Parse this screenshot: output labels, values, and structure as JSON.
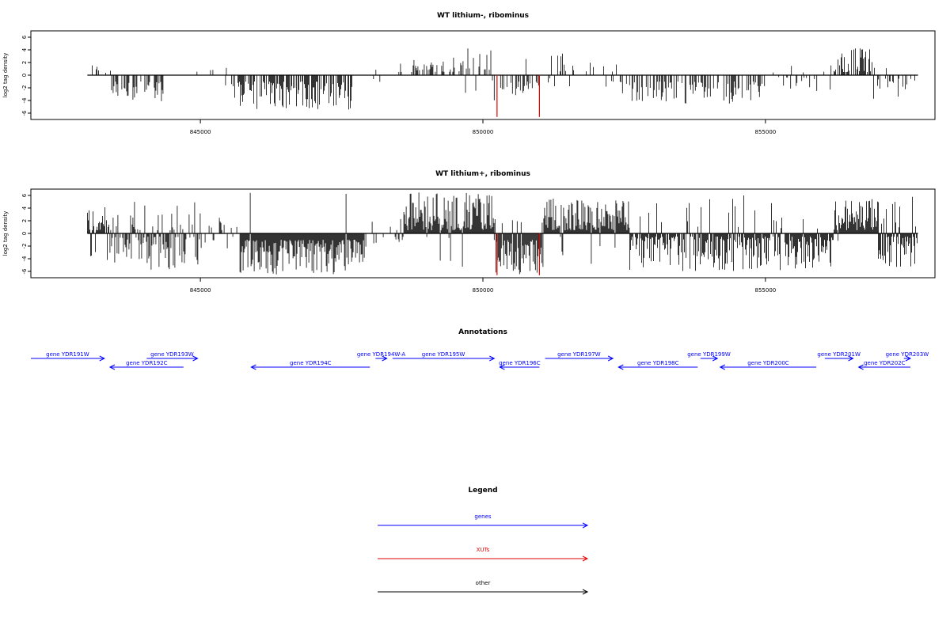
{
  "chart_data": [
    {
      "type": "bar",
      "title": "WT lithium-, ribominus",
      "ylabel": "log2 tag density",
      "xlim": [
        842000,
        858000
      ],
      "ylim": [
        -7,
        7
      ],
      "x_ticks": [
        845000,
        850000,
        855000
      ],
      "x_tick_labels": [
        "845000",
        "850000",
        "855000"
      ],
      "y_ticks": [
        -6,
        -4,
        -2,
        0,
        2,
        4,
        6
      ],
      "y_tick_labels": [
        "-6",
        "-4",
        "-2",
        "0",
        "2",
        "4",
        "6"
      ],
      "baseline": [
        843000,
        857700
      ],
      "segments": [
        {
          "range": [
            843000,
            843450
          ],
          "density": 0.25,
          "min": 0.3,
          "max": 1.8,
          "up_frac": 0.9
        },
        {
          "range": [
            843400,
            844350
          ],
          "density": 0.5,
          "min": 1,
          "max": 4.2,
          "up_frac": 0
        },
        {
          "range": [
            844800,
            845550
          ],
          "density": 0.1,
          "min": 0.5,
          "max": 1.8,
          "up_frac": 0.7
        },
        {
          "range": [
            845550,
            847700
          ],
          "density": 0.7,
          "min": 1,
          "max": 5.5,
          "up_frac": 0
        },
        {
          "range": [
            847700,
            848600
          ],
          "density": 0.1,
          "min": 0.5,
          "max": 1.5,
          "up_frac": 0.5
        },
        {
          "range": [
            848500,
            849650
          ],
          "density": 0.3,
          "min": 0.5,
          "max": 3.2,
          "up_frac": 1
        },
        {
          "range": [
            849650,
            850200
          ],
          "density": 0.35,
          "min": 0.8,
          "max": 4.6,
          "up_frac": 0.8
        },
        {
          "range": [
            850200,
            851000
          ],
          "density": 0.55,
          "min": 1,
          "max": 4,
          "up_frac": 0.1
        },
        {
          "range": [
            851000,
            852400
          ],
          "density": 0.25,
          "min": 0.5,
          "max": 3.8,
          "up_frac": 0.85
        },
        {
          "range": [
            852400,
            854900
          ],
          "density": 0.45,
          "min": 1,
          "max": 4.5,
          "up_frac": 0
        },
        {
          "range": [
            854900,
            856200
          ],
          "density": 0.2,
          "min": 0.3,
          "max": 2.5,
          "up_frac": 0.2
        },
        {
          "range": [
            856200,
            856900
          ],
          "density": 0.65,
          "min": 0.5,
          "max": 4.4,
          "up_frac": 1
        },
        {
          "range": [
            856900,
            857700
          ],
          "density": 0.3,
          "min": 0.5,
          "max": 3.8,
          "up_frac": 0.1
        }
      ],
      "highlights": [
        {
          "x": 850250,
          "y": -6.6,
          "color": "#e00000"
        },
        {
          "x": 851000,
          "y": -6.6,
          "color": "#e00000"
        }
      ]
    },
    {
      "type": "bar",
      "title": "WT lithium+, ribominus",
      "ylabel": "log2 tag density",
      "xlim": [
        842000,
        858000
      ],
      "ylim": [
        -7,
        7
      ],
      "x_ticks": [
        845000,
        850000,
        855000
      ],
      "x_tick_labels": [
        "845000",
        "850000",
        "855000"
      ],
      "y_ticks": [
        -6,
        -4,
        -2,
        0,
        2,
        4,
        6
      ],
      "y_tick_labels": [
        "-6",
        "-4",
        "-2",
        "0",
        "2",
        "4",
        "6"
      ],
      "baseline": [
        843000,
        857700
      ],
      "segments": [
        {
          "range": [
            843000,
            843400
          ],
          "density": 0.9,
          "min": 0.5,
          "max": 4.2,
          "up_frac": 0.8
        },
        {
          "range": [
            843400,
            845000
          ],
          "density": 0.8,
          "min": 0.5,
          "max": 5.8,
          "up_frac": 0.35
        },
        {
          "range": [
            845000,
            845700
          ],
          "density": 0.3,
          "min": 0.5,
          "max": 2.5,
          "up_frac": 0.5
        },
        {
          "range": [
            845700,
            847900
          ],
          "density": 1,
          "min": 1,
          "max": 6.5,
          "up_frac": 0.03
        },
        {
          "range": [
            847900,
            848600
          ],
          "density": 0.3,
          "min": 0.5,
          "max": 2.5,
          "up_frac": 0.4
        },
        {
          "range": [
            848600,
            850200
          ],
          "density": 1,
          "min": 0.5,
          "max": 6.5,
          "up_frac": 0.92
        },
        {
          "range": [
            850200,
            851050
          ],
          "density": 1,
          "min": 1,
          "max": 6.5,
          "up_frac": 0.05
        },
        {
          "range": [
            851050,
            852600
          ],
          "density": 1,
          "min": 0.5,
          "max": 5.5,
          "up_frac": 0.95
        },
        {
          "range": [
            852600,
            856200
          ],
          "density": 0.9,
          "min": 0.5,
          "max": 6,
          "up_frac": 0.1
        },
        {
          "range": [
            856200,
            857000
          ],
          "density": 1,
          "min": 0.5,
          "max": 5.5,
          "up_frac": 0.95
        },
        {
          "range": [
            857000,
            857700
          ],
          "density": 1,
          "min": 0.5,
          "max": 5.8,
          "up_frac": 0.15
        }
      ],
      "highlights": [
        {
          "x": 850250,
          "y": -6.6,
          "color": "#e00000"
        },
        {
          "x": 851000,
          "y": -6.6,
          "color": "#e00000"
        }
      ]
    }
  ],
  "annotations": {
    "title": "Annotations",
    "genes": [
      {
        "label": "gene YDR191W",
        "start": 842000,
        "end": 843300,
        "strand": "+",
        "row": 0
      },
      {
        "label": "gene YDR192C",
        "start": 843400,
        "end": 844700,
        "strand": "-",
        "row": 1
      },
      {
        "label": "gene YDR193W",
        "start": 844050,
        "end": 844950,
        "strand": "+",
        "row": 0
      },
      {
        "label": "gene YDR194C",
        "start": 845900,
        "end": 848000,
        "strand": "-",
        "row": 1
      },
      {
        "label": "gene YDR194W-A",
        "start": 848100,
        "end": 848300,
        "strand": "+",
        "row": 0
      },
      {
        "label": "gene YDR195W",
        "start": 848400,
        "end": 850200,
        "strand": "+",
        "row": 0
      },
      {
        "label": "gene YDR196C",
        "start": 850300,
        "end": 851000,
        "strand": "-",
        "row": 1
      },
      {
        "label": "gene YDR197W",
        "start": 851100,
        "end": 852300,
        "strand": "+",
        "row": 0
      },
      {
        "label": "gene YDR198C",
        "start": 852400,
        "end": 853800,
        "strand": "-",
        "row": 1
      },
      {
        "label": "gene YDR199W",
        "start": 853850,
        "end": 854150,
        "strand": "+",
        "row": 0
      },
      {
        "label": "gene YDR200C",
        "start": 854200,
        "end": 855900,
        "strand": "-",
        "row": 1
      },
      {
        "label": "gene YDR201W",
        "start": 856050,
        "end": 856550,
        "strand": "+",
        "row": 0
      },
      {
        "label": "gene YDR202C",
        "start": 856650,
        "end": 857700,
        "strand": "-",
        "row": 1
      },
      {
        "label": "gene YDR203W",
        "start": 857450,
        "end": 857750,
        "strand": "+",
        "row": 0
      }
    ]
  },
  "legend": {
    "title": "Legend",
    "items": [
      {
        "label": "genes",
        "color": "#0000ff"
      },
      {
        "label": "XUTs",
        "color": "#e00000"
      },
      {
        "label": "other",
        "color": "#000000"
      }
    ]
  }
}
